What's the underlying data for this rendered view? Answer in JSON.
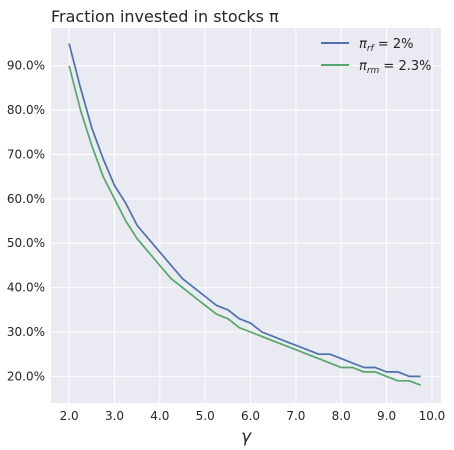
{
  "chart_data": {
    "type": "line",
    "title": "Fraction invested in stocks π",
    "xlabel": "γ",
    "ylabel": "",
    "xlim": [
      1.6,
      10.2
    ],
    "ylim": [
      0.14,
      0.985
    ],
    "xticks": [
      2.0,
      3.0,
      4.0,
      5.0,
      6.0,
      7.0,
      8.0,
      9.0,
      10.0
    ],
    "xtick_labels": [
      "2.0",
      "3.0",
      "4.0",
      "5.0",
      "6.0",
      "7.0",
      "8.0",
      "9.0",
      "10.0"
    ],
    "yticks": [
      0.2,
      0.3,
      0.4,
      0.5,
      0.6,
      0.7,
      0.8,
      0.9
    ],
    "ytick_labels": [
      "20.0%",
      "30.0%",
      "40.0%",
      "50.0%",
      "60.0%",
      "70.0%",
      "80.0%",
      "90.0%"
    ],
    "grid": true,
    "legend_position": "top-right",
    "series": [
      {
        "name": "π_rf = 2%",
        "color": "#4c72b0",
        "x": [
          2.0,
          2.25,
          2.5,
          2.75,
          3.0,
          3.25,
          3.5,
          3.75,
          4.0,
          4.25,
          4.5,
          4.75,
          5.0,
          5.25,
          5.5,
          5.75,
          6.0,
          6.25,
          6.5,
          6.75,
          7.0,
          7.25,
          7.5,
          7.75,
          8.0,
          8.25,
          8.5,
          8.75,
          9.0,
          9.25,
          9.5,
          9.75
        ],
        "y": [
          0.95,
          0.85,
          0.76,
          0.69,
          0.63,
          0.59,
          0.54,
          0.51,
          0.48,
          0.45,
          0.42,
          0.4,
          0.38,
          0.36,
          0.35,
          0.33,
          0.32,
          0.3,
          0.29,
          0.28,
          0.27,
          0.26,
          0.25,
          0.25,
          0.24,
          0.23,
          0.22,
          0.22,
          0.21,
          0.21,
          0.2,
          0.2
        ]
      },
      {
        "name": "π_rm = 2.3%",
        "color": "#55a868",
        "x": [
          2.0,
          2.25,
          2.5,
          2.75,
          3.0,
          3.25,
          3.5,
          3.75,
          4.0,
          4.25,
          4.5,
          4.75,
          5.0,
          5.25,
          5.5,
          5.75,
          6.0,
          6.25,
          6.5,
          6.75,
          7.0,
          7.25,
          7.5,
          7.75,
          8.0,
          8.25,
          8.5,
          8.75,
          9.0,
          9.25,
          9.5,
          9.75
        ],
        "y": [
          0.9,
          0.8,
          0.72,
          0.65,
          0.6,
          0.55,
          0.51,
          0.48,
          0.45,
          0.42,
          0.4,
          0.38,
          0.36,
          0.34,
          0.33,
          0.31,
          0.3,
          0.29,
          0.28,
          0.27,
          0.26,
          0.25,
          0.24,
          0.23,
          0.22,
          0.22,
          0.21,
          0.21,
          0.2,
          0.19,
          0.19,
          0.18
        ]
      }
    ],
    "legend": [
      {
        "label_main": "π",
        "label_sub": "rf",
        "label_rest": " = 2%"
      },
      {
        "label_main": "π",
        "label_sub": "rm",
        "label_rest": " = 2.3%"
      }
    ]
  }
}
